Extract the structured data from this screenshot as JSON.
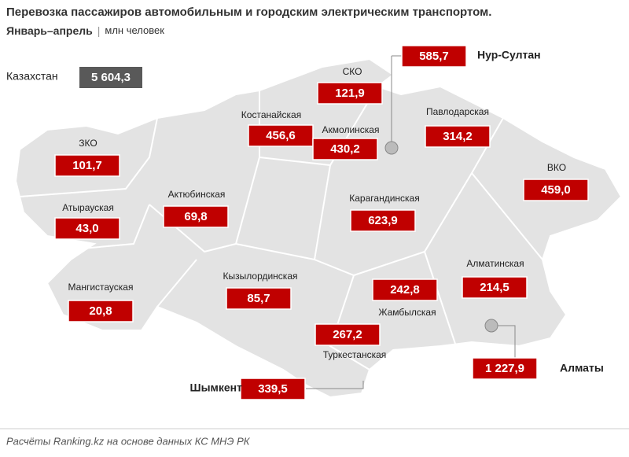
{
  "header": {
    "title": "Перевозка пассажиров автомобильным и городским электрическим транспортом.",
    "period": "Январь–апрель",
    "unit": "млн человек"
  },
  "total": {
    "label": "Казахстан",
    "value": "5 604,3"
  },
  "regions": [
    {
      "name": "СКО",
      "value": "121,9"
    },
    {
      "name": "Костанайская",
      "value": "456,6"
    },
    {
      "name": "Акмолинская",
      "value": "430,2"
    },
    {
      "name": "Павлодарская",
      "value": "314,2"
    },
    {
      "name": "ЗКО",
      "value": "101,7"
    },
    {
      "name": "ВКО",
      "value": "459,0"
    },
    {
      "name": "Актюбинская",
      "value": "69,8"
    },
    {
      "name": "Карагандинская",
      "value": "623,9"
    },
    {
      "name": "Атырауская",
      "value": "43,0"
    },
    {
      "name": "Алматинская",
      "value": "214,5"
    },
    {
      "name": "Кызылординская",
      "value": "85,7"
    },
    {
      "name": "Мангистауская",
      "value": "20,8"
    },
    {
      "name": "Жамбылская",
      "value": "242,8"
    },
    {
      "name": "Туркестанская",
      "value": "267,2"
    }
  ],
  "cities": [
    {
      "name": "Нур-Султан",
      "value": "585,7"
    },
    {
      "name": "Шымкент",
      "value": "339,5"
    },
    {
      "name": "Алматы",
      "value": "1 227,9"
    }
  ],
  "source": "Расчёты Ranking.kz на основе данных КС МНЭ РК"
}
